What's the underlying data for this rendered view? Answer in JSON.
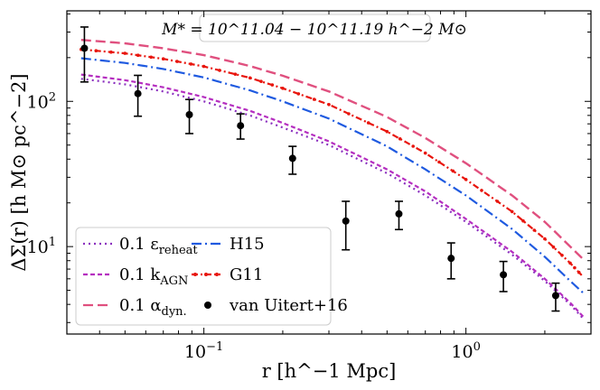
{
  "chart_data": {
    "type": "line",
    "title": "M* = 10^11.04 − 10^11.19 h^−2 M⊙",
    "xlabel": "r [h^−1 Mpc]",
    "ylabel": "ΔΣ(r) [h M⊙ pc^−2]",
    "xscale": "log",
    "yscale": "log",
    "xlim": [
      0.03,
      3.0
    ],
    "ylim": [
      2.5,
      420
    ],
    "x_ticks": [
      {
        "value": 0.1,
        "base": "10",
        "exp": "−1"
      },
      {
        "value": 1,
        "base": "10",
        "exp": "0"
      }
    ],
    "y_ticks": [
      {
        "value": 10,
        "base": "10",
        "exp": "1"
      },
      {
        "value": 100,
        "base": "10",
        "exp": "2"
      }
    ],
    "legend": {
      "position": "bottom-left",
      "columns": 2
    },
    "series": [
      {
        "name": "0.1 ε_reheat",
        "label_main": "0.1 ε",
        "label_sub": "reheat",
        "style": "dotted",
        "color": "#8b2fbf",
        "x": [
          0.034,
          0.05,
          0.07,
          0.1,
          0.15,
          0.2,
          0.3,
          0.5,
          0.7,
          1.0,
          1.5,
          2.0,
          2.5,
          2.8
        ],
        "y": [
          143,
          131,
          117,
          100,
          80,
          66,
          50,
          32,
          22.5,
          14.8,
          8.8,
          5.8,
          4.0,
          3.2
        ]
      },
      {
        "name": "0.1 k_AGN",
        "label_main": "0.1 k",
        "label_sub": "AGN",
        "style": "dashed",
        "color": "#b52ec0",
        "x": [
          0.034,
          0.05,
          0.07,
          0.1,
          0.15,
          0.2,
          0.3,
          0.5,
          0.7,
          1.0,
          1.5,
          2.0,
          2.5,
          2.8
        ],
        "y": [
          153,
          140,
          125,
          107,
          86,
          71,
          53,
          34,
          24,
          15.5,
          9.2,
          6.0,
          4.1,
          3.3
        ]
      },
      {
        "name": "0.1 α_dyn.",
        "label_main": "0.1 α",
        "label_sub": "dyn.",
        "style": "long-dashed",
        "color": "#e0507f",
        "x": [
          0.034,
          0.05,
          0.07,
          0.1,
          0.15,
          0.2,
          0.3,
          0.5,
          0.7,
          1.0,
          1.5,
          2.0,
          2.5,
          2.8
        ],
        "y": [
          265,
          251,
          232,
          208,
          175,
          150,
          117,
          78,
          56,
          37.5,
          22.5,
          14.8,
          10.0,
          8.2
        ]
      },
      {
        "name": "H15",
        "label_main": "H15",
        "label_sub": "",
        "style": "dash-dot",
        "color": "#1f5ae0",
        "x": [
          0.034,
          0.05,
          0.07,
          0.1,
          0.15,
          0.2,
          0.3,
          0.5,
          0.7,
          1.0,
          1.5,
          2.0,
          2.5,
          2.8
        ],
        "y": [
          198,
          184,
          167,
          146,
          119,
          100,
          76,
          49,
          34,
          22.5,
          13.2,
          8.5,
          5.8,
          4.8
        ]
      },
      {
        "name": "G11",
        "label_main": "G11",
        "label_sub": "",
        "style": "dash-dot-markers",
        "color": "#e8150d",
        "x": [
          0.034,
          0.05,
          0.07,
          0.1,
          0.15,
          0.2,
          0.3,
          0.5,
          0.7,
          1.0,
          1.5,
          2.0,
          2.5,
          2.8
        ],
        "y": [
          228,
          214,
          196,
          174,
          145,
          123,
          95,
          62,
          44,
          29,
          17.4,
          11.3,
          7.7,
          6.2
        ]
      }
    ],
    "data_points": {
      "name": "van Uitert+16",
      "color": "#000000",
      "x": [
        0.035,
        0.056,
        0.088,
        0.138,
        0.218,
        0.348,
        0.555,
        0.878,
        1.39,
        2.2
      ],
      "y": [
        232,
        113,
        81,
        68,
        40.5,
        15,
        16.8,
        8.3,
        6.4,
        4.6
      ],
      "err_low": [
        96,
        34,
        21,
        13,
        9,
        5.5,
        3.7,
        2.3,
        1.5,
        1.0
      ],
      "err_high": [
        93,
        38,
        22,
        14,
        8.5,
        5.5,
        3.7,
        2.3,
        1.5,
        1.0
      ]
    }
  }
}
